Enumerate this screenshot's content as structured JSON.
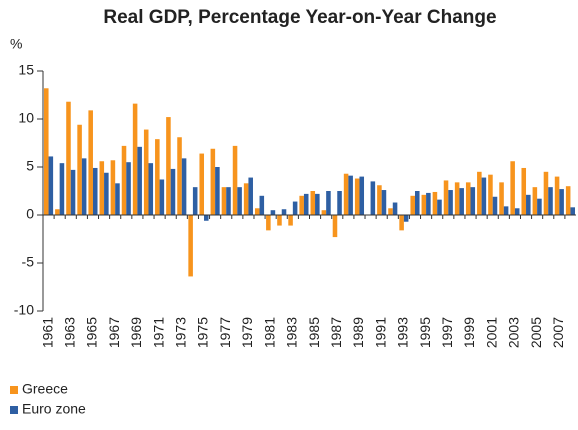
{
  "chart_data": {
    "type": "bar",
    "title": "Real GDP, Percentage Year-on-Year Change",
    "y_label": "%",
    "categories": [
      "1961",
      null,
      "1963",
      null,
      "1965",
      null,
      "1967",
      null,
      "1969",
      null,
      "1971",
      null,
      "1973",
      null,
      "1975",
      null,
      "1977",
      null,
      "1979",
      null,
      "1981",
      null,
      "1983",
      null,
      "1985",
      null,
      "1987",
      null,
      "1989",
      null,
      "1991",
      null,
      "1993",
      null,
      "1995",
      null,
      "1997",
      null,
      "1999",
      null,
      "2001",
      null,
      "2003",
      null,
      "2005",
      null,
      "2007",
      null
    ],
    "series": [
      {
        "name": "Greece",
        "color": "#f7941d",
        "values": [
          13.2,
          0.6,
          11.8,
          9.4,
          10.9,
          5.6,
          5.7,
          7.2,
          11.6,
          8.9,
          7.9,
          10.2,
          8.1,
          -6.4,
          6.4,
          6.9,
          2.9,
          7.2,
          3.3,
          0.7,
          -1.6,
          -1.1,
          -1.1,
          2.0,
          2.5,
          0.5,
          -2.3,
          4.3,
          3.8,
          0.0,
          3.1,
          0.7,
          -1.6,
          2.0,
          2.1,
          2.4,
          3.6,
          3.4,
          3.4,
          4.5,
          4.2,
          3.4,
          5.6,
          4.9,
          2.9,
          4.5,
          4.0,
          3.0
        ]
      },
      {
        "name": "Euro zone",
        "color": "#2e5fa3",
        "values": [
          6.1,
          5.4,
          4.7,
          5.9,
          4.9,
          4.4,
          3.3,
          5.5,
          7.1,
          5.4,
          3.7,
          4.8,
          5.9,
          2.9,
          -0.6,
          5.0,
          2.9,
          2.9,
          3.9,
          2.0,
          0.5,
          0.6,
          1.4,
          2.2,
          2.2,
          2.5,
          2.5,
          4.1,
          4.0,
          3.5,
          2.6,
          1.3,
          -0.7,
          2.5,
          2.3,
          1.6,
          2.6,
          2.8,
          2.9,
          3.9,
          1.9,
          0.9,
          0.7,
          2.1,
          1.7,
          2.9,
          2.7,
          0.8
        ]
      }
    ],
    "ylim": [
      -10,
      15
    ],
    "yticks": [
      -10,
      -5,
      0,
      5,
      10,
      15
    ],
    "grid": false,
    "legend": "bottom-left"
  }
}
